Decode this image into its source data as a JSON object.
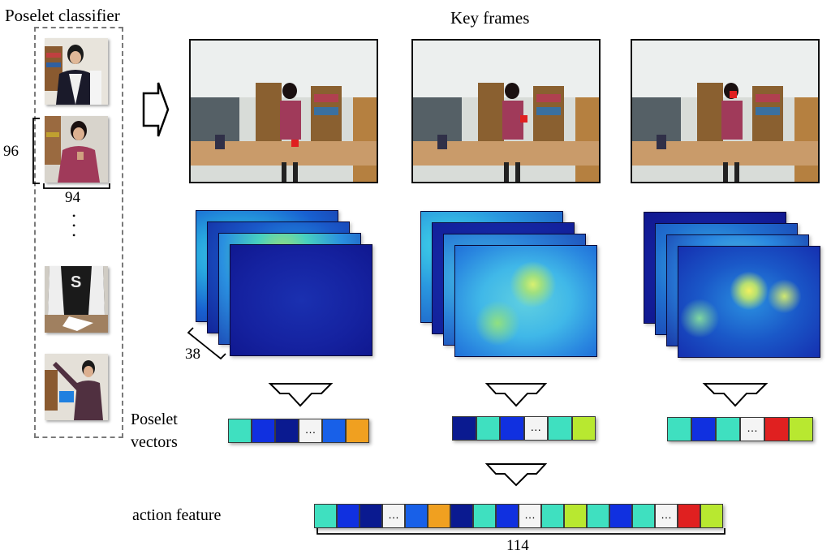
{
  "labels": {
    "poselet_classifier": "Poselet classifier",
    "key_frames": "Key frames",
    "height_96": "96",
    "width_94": "94",
    "ellipsis_dots": "•\n•\n•",
    "depth_38": "38",
    "poselet_vectors_line1": "Poselet",
    "poselet_vectors_line2": "vectors",
    "action_feature": "action feature",
    "length_114": "114",
    "cell_ellipsis": "…"
  },
  "colors": {
    "turquoise": "#3fe0c0",
    "blue": "#1030e0",
    "navy": "#0a1a90",
    "white": "#f4f4f4",
    "midblue": "#1860e8",
    "orange": "#f0a020",
    "red": "#e02020",
    "lime": "#b8e830"
  },
  "vectors": {
    "frame1": [
      "turquoise",
      "blue",
      "navy",
      "white",
      "midblue",
      "orange"
    ],
    "frame2": [
      "navy",
      "turquoise",
      "blue",
      "white",
      "turquoise",
      "lime"
    ],
    "frame3": [
      "turquoise",
      "blue",
      "turquoise",
      "white",
      "red",
      "lime"
    ],
    "action": [
      "turquoise",
      "blue",
      "navy",
      "white",
      "midblue",
      "orange",
      "navy",
      "turquoise",
      "blue",
      "white",
      "turquoise",
      "lime",
      "turquoise",
      "blue",
      "turquoise",
      "white",
      "red",
      "lime"
    ]
  },
  "icons": {
    "right_arrow": "hollow-right-arrow-icon",
    "down_arrow": "hollow-down-arrow-icon"
  }
}
